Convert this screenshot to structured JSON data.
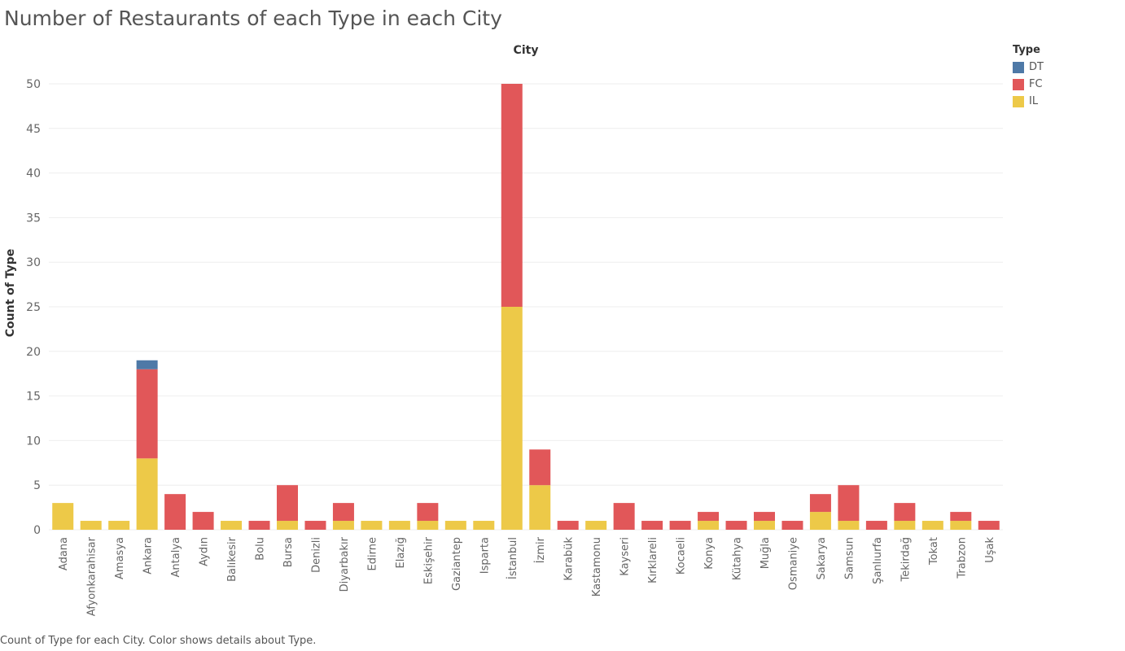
{
  "caption": "Count of Type for each City.  Color shows details about Type.",
  "colors": {
    "DT": "#4e79a7",
    "FC": "#e15759",
    "IL": "#edc948",
    "grid": "#eeeeee",
    "axis_text": "#666666"
  },
  "chart_data": {
    "type": "bar",
    "stacked": true,
    "title": "Number of Restaurants of each Type  in each City",
    "column_header": "City",
    "ylabel": "Count of Type",
    "ylim": [
      0,
      53
    ],
    "yticks": [
      0,
      5,
      10,
      15,
      20,
      25,
      30,
      35,
      40,
      45,
      50
    ],
    "grid": true,
    "legend": {
      "title": "Type",
      "position": "top-right",
      "entries": [
        "DT",
        "FC",
        "IL"
      ]
    },
    "categories": [
      "Adana",
      "Afyonkarahisar",
      "Amasya",
      "Ankara",
      "Antalya",
      "Aydın",
      "Balıkesir",
      "Bolu",
      "Bursa",
      "Denizli",
      "Diyarbakır",
      "Edirne",
      "Elazığ",
      "Eskişehir",
      "Gaziantep",
      "Isparta",
      "İstanbul",
      "İzmir",
      "Karabük",
      "Kastamonu",
      "Kayseri",
      "Kırklareli",
      "Kocaeli",
      "Konya",
      "Kütahya",
      "Muğla",
      "Osmaniye",
      "Sakarya",
      "Samsun",
      "Şanlıurfa",
      "Tekirdağ",
      "Tokat",
      "Trabzon",
      "Uşak"
    ],
    "series": [
      {
        "name": "IL",
        "values": [
          3,
          1,
          1,
          8,
          0,
          0,
          1,
          0,
          1,
          0,
          1,
          1,
          1,
          1,
          1,
          1,
          25,
          5,
          0,
          1,
          0,
          0,
          0,
          1,
          0,
          1,
          0,
          2,
          1,
          0,
          1,
          1,
          1,
          0
        ]
      },
      {
        "name": "FC",
        "values": [
          0,
          0,
          0,
          10,
          4,
          2,
          0,
          1,
          4,
          1,
          2,
          0,
          0,
          2,
          0,
          0,
          25,
          4,
          1,
          0,
          3,
          1,
          1,
          1,
          1,
          1,
          1,
          2,
          4,
          1,
          2,
          0,
          1,
          1
        ]
      },
      {
        "name": "DT",
        "values": [
          0,
          0,
          0,
          1,
          0,
          0,
          0,
          0,
          0,
          0,
          0,
          0,
          0,
          0,
          0,
          0,
          0,
          0,
          0,
          0,
          0,
          0,
          0,
          0,
          0,
          0,
          0,
          0,
          0,
          0,
          0,
          0,
          0,
          0
        ]
      }
    ]
  }
}
